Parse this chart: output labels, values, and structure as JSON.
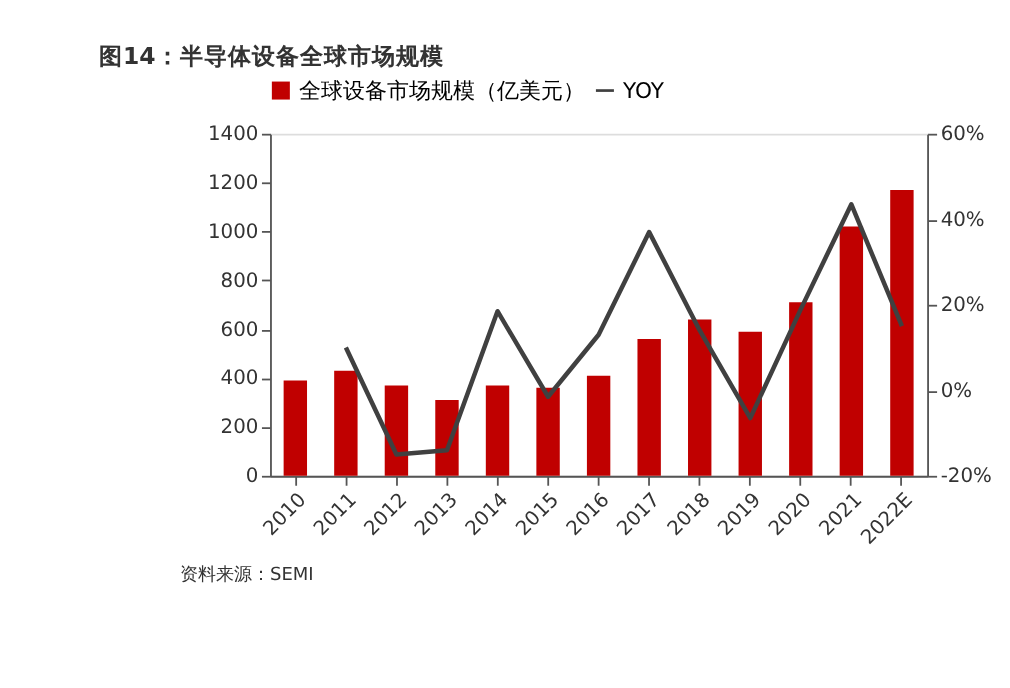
{
  "chart_data": {
    "type": "bar",
    "title": "图14：半导体设备全球市场规模",
    "categories": [
      "2010",
      "2011",
      "2012",
      "2013",
      "2014",
      "2015",
      "2016",
      "2017",
      "2018",
      "2019",
      "2020",
      "2021",
      "2022E"
    ],
    "series": [
      {
        "name": "全球设备市场规模（亿美元）",
        "color": "#c00000",
        "values": [
          390,
          430,
          370,
          310,
          370,
          360,
          410,
          560,
          640,
          590,
          710,
          1020,
          1170
        ]
      },
      {
        "name": "YOY",
        "type": "line",
        "axis": "y2",
        "color": "#404040",
        "values": [
          null,
          10,
          -15,
          -14,
          18.5,
          -1.5,
          13,
          37,
          14,
          -6.5,
          19,
          43.5,
          15
        ]
      }
    ],
    "ylim": [
      0,
      1400
    ],
    "yticks": [
      0,
      200,
      400,
      600,
      800,
      1000,
      1200,
      1400
    ],
    "y2lim": [
      -20,
      60
    ],
    "y2ticks": [
      {
        "value": -20,
        "label": "-20%"
      },
      {
        "value": 0,
        "label": "0%"
      },
      {
        "value": 20,
        "label": "20%"
      },
      {
        "value": 40,
        "label": "40%"
      },
      {
        "value": 60,
        "label": "60%"
      }
    ],
    "legend": "top",
    "grid": false,
    "marker": "none",
    "line_style": "solid",
    "annotations": [
      "资料来源：SEMI"
    ]
  }
}
